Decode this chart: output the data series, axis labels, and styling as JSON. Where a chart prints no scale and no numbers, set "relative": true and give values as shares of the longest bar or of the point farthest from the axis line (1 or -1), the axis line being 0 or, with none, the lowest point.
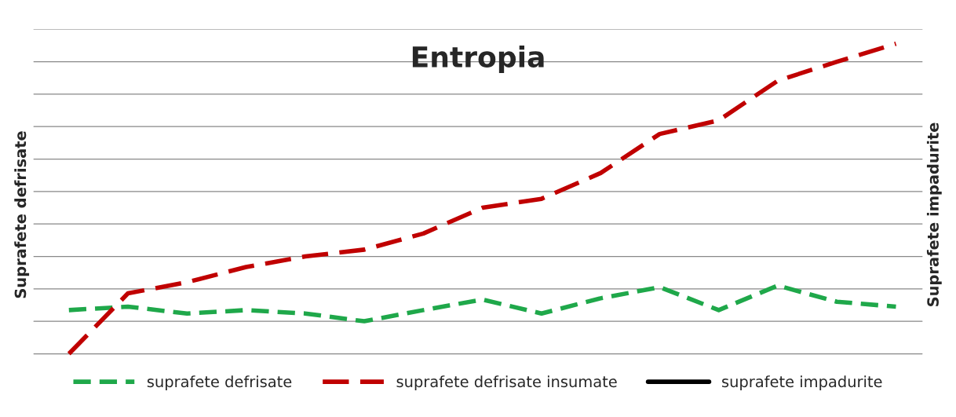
{
  "chart_data": {
    "type": "line",
    "title": "Entropia",
    "ylabel": "Suprafete defrisate",
    "y2label": "Suprafete impadurite",
    "relative": true,
    "grid": "y",
    "legend": "bottom",
    "tick_labels": false,
    "line_style": "dashed",
    "marker": "none",
    "categories": [
      null,
      null,
      null,
      null,
      null,
      null,
      null,
      null,
      null,
      null,
      null,
      null,
      null,
      null,
      null
    ],
    "series": [
      {
        "name": "suprafete defrisate",
        "color": "#1fa84a",
        "values": [
          0.141,
          0.152,
          0.13,
          0.141,
          0.13,
          0.105,
          0.141,
          0.175,
          0.13,
          0.179,
          0.215,
          0.141,
          0.22,
          0.168,
          0.152
        ]
      },
      {
        "name": "suprafete defrisate insumate",
        "color": "#c00000",
        "values": [
          0,
          0.195,
          0.231,
          0.28,
          0.314,
          0.336,
          0.388,
          0.471,
          0.5,
          0.583,
          0.709,
          0.753,
          0.881,
          0.942,
          1
        ]
      },
      {
        "name": "suprafete impadurite",
        "color": "#000000",
        "line_style": "solid",
        "values": [
          null,
          null,
          null,
          null,
          null,
          null,
          null,
          null,
          null,
          null,
          null,
          null,
          null,
          null,
          null
        ]
      }
    ]
  }
}
